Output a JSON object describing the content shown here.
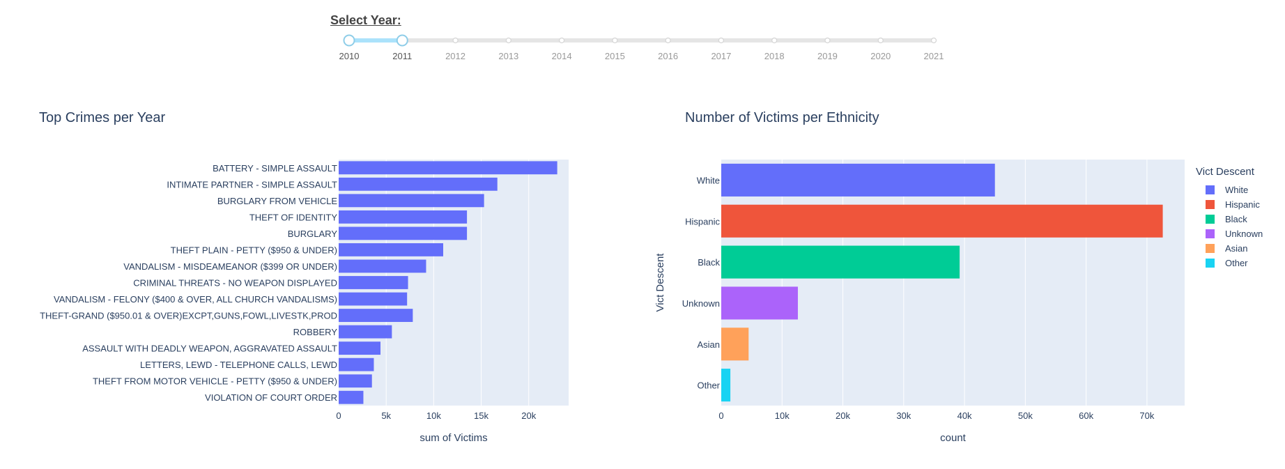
{
  "slider": {
    "title": "Select Year:",
    "years": [
      "2010",
      "2011",
      "2012",
      "2013",
      "2014",
      "2015",
      "2016",
      "2017",
      "2018",
      "2019",
      "2020",
      "2021"
    ],
    "range_start": "2010",
    "range_end": "2011",
    "track_color": "#e5e5e5",
    "active_color": "#abe2fb"
  },
  "chart_data": [
    {
      "type": "bar",
      "orientation": "horizontal",
      "title": "Top Crimes per Year",
      "xlabel": "sum of Victims",
      "ylabel": "",
      "xlim": [
        0,
        24200
      ],
      "xticks": [
        0,
        5000,
        10000,
        15000,
        20000
      ],
      "xtick_labels": [
        "0",
        "5k",
        "10k",
        "15k",
        "20k"
      ],
      "grid": true,
      "bar_color": "#636efa",
      "plot_bg": "#e5ecf6",
      "categories": [
        "BATTERY - SIMPLE ASSAULT",
        "INTIMATE PARTNER - SIMPLE ASSAULT",
        "BURGLARY FROM VEHICLE",
        "THEFT OF IDENTITY",
        "BURGLARY",
        "THEFT PLAIN - PETTY ($950 & UNDER)",
        "VANDALISM - MISDEAMEANOR ($399 OR UNDER)",
        "CRIMINAL THREATS - NO WEAPON DISPLAYED",
        "VANDALISM - FELONY ($400 & OVER, ALL CHURCH VANDALISMS)",
        "THEFT-GRAND ($950.01 & OVER)EXCPT,GUNS,FOWL,LIVESTK,PROD",
        "ROBBERY",
        "ASSAULT WITH DEADLY WEAPON, AGGRAVATED ASSAULT",
        "LETTERS, LEWD  -  TELEPHONE CALLS, LEWD",
        "THEFT FROM MOTOR VEHICLE - PETTY ($950 & UNDER)",
        "VIOLATION OF COURT ORDER"
      ],
      "values": [
        23000,
        16700,
        15300,
        13500,
        13500,
        11000,
        9200,
        7300,
        7200,
        7800,
        5600,
        4400,
        3700,
        3500,
        2600
      ]
    },
    {
      "type": "bar",
      "orientation": "horizontal",
      "title": "Number of Victims per Ethnicity",
      "xlabel": "count",
      "ylabel": "Vict Descent",
      "xlim": [
        0,
        76200
      ],
      "xticks": [
        0,
        10000,
        20000,
        30000,
        40000,
        50000,
        60000,
        70000
      ],
      "xtick_labels": [
        "0",
        "10k",
        "20k",
        "30k",
        "40k",
        "50k",
        "60k",
        "70k"
      ],
      "grid": true,
      "plot_bg": "#e5ecf6",
      "categories": [
        "White",
        "Hispanic",
        "Black",
        "Unknown",
        "Asian",
        "Other"
      ],
      "values": [
        45000,
        72600,
        39200,
        12600,
        4500,
        1500
      ],
      "colors": [
        "#636efa",
        "#ef553b",
        "#00cc96",
        "#ab63fa",
        "#ffa15a",
        "#19d3f3"
      ],
      "legend": {
        "title": "Vict Descent",
        "position": "right",
        "entries": [
          "White",
          "Hispanic",
          "Black",
          "Unknown",
          "Asian",
          "Other"
        ]
      }
    }
  ]
}
